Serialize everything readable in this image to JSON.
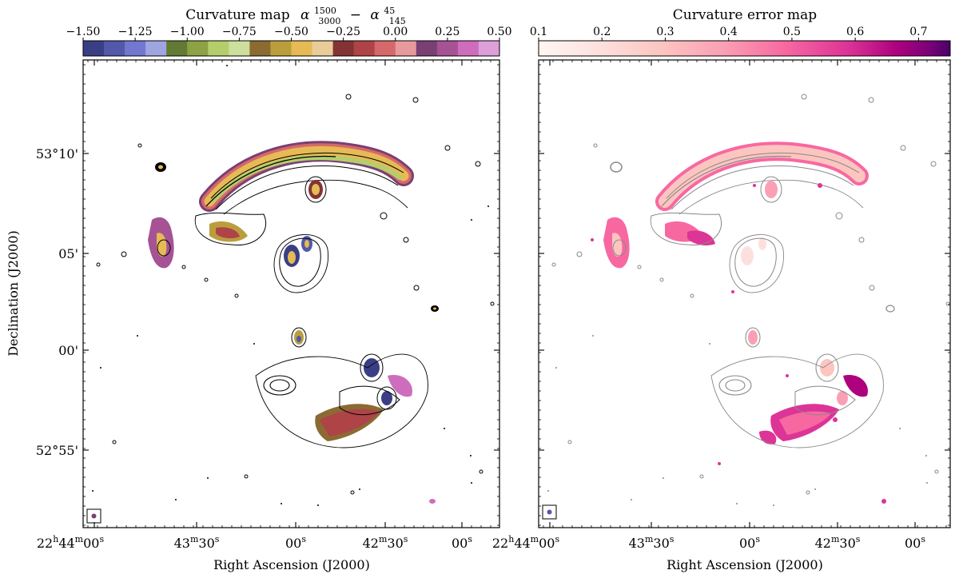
{
  "chart_data": [
    {
      "type": "heatmap",
      "title": "Curvature map",
      "title_math": {
        "base": "α",
        "sup1": "1500",
        "sub1": "3000",
        "minus": "−",
        "sup2": "45",
        "sub2": "145"
      },
      "colorbar": {
        "min": -1.5,
        "max": 0.5,
        "ticks": [
          -1.5,
          -1.25,
          -1.0,
          -0.75,
          -0.5,
          -0.25,
          0.0,
          0.25,
          0.5
        ],
        "tick_labels": [
          "−1.50",
          "−1.25",
          "−1.00",
          "−0.75",
          "−0.50",
          "−0.25",
          "0.00",
          "0.25",
          "0.50"
        ],
        "colors": [
          "#3a3f85",
          "#5259a9",
          "#7278cf",
          "#9ea5e1",
          "#637a35",
          "#8da245",
          "#b5ce6c",
          "#cede9d",
          "#8b6b32",
          "#bb9e3c",
          "#e6ba55",
          "#e8cd99",
          "#843334",
          "#ae4448",
          "#d66869",
          "#e79a9c",
          "#7a3f73",
          "#a55395",
          "#ce6dbd",
          "#dd9fd7"
        ]
      },
      "xlabel": "Right Ascension (J2000)",
      "ylabel": "Declination (J2000)",
      "x_ticks": [
        {
          "value": "22h44m00s",
          "h": "22",
          "m": "44",
          "s": "00"
        },
        {
          "value": "43m30s",
          "m": "43",
          "s": "30"
        },
        {
          "value": "00s",
          "s": "00"
        },
        {
          "value": "42m30s",
          "m": "42",
          "s": "30"
        },
        {
          "value": "00s",
          "s": "00"
        }
      ],
      "y_ticks": [
        "53°10'",
        "05'",
        "00'",
        "52°55'"
      ]
    },
    {
      "type": "heatmap",
      "title": "Curvature error map",
      "colorbar": {
        "min": 0.1,
        "max": 0.75,
        "ticks": [
          0.1,
          0.2,
          0.3,
          0.4,
          0.5,
          0.6,
          0.7
        ],
        "tick_labels": [
          "0.1",
          "0.2",
          "0.3",
          "0.4",
          "0.5",
          "0.6",
          "0.7"
        ],
        "colormap": "RdPu"
      },
      "xlabel": "Right Ascension (J2000)",
      "x_ticks": [
        {
          "value": "22h44m00s",
          "h": "22",
          "m": "44",
          "s": "00"
        },
        {
          "value": "43m30s",
          "m": "43",
          "s": "30"
        },
        {
          "value": "00s",
          "s": "00"
        },
        {
          "value": "42m30s",
          "m": "42",
          "s": "30"
        },
        {
          "value": "00s",
          "s": "00"
        }
      ]
    }
  ]
}
